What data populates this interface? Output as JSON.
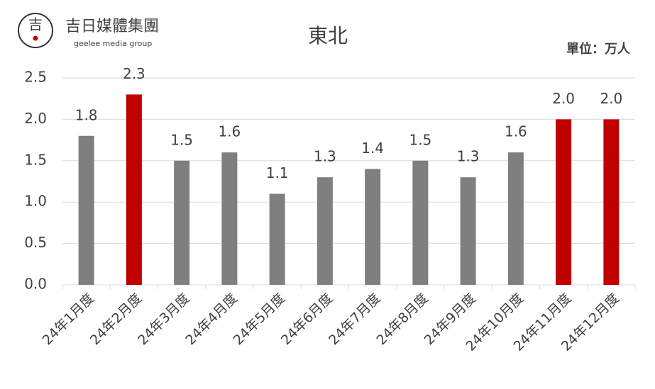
{
  "brand": {
    "mark": "吉",
    "name": "吉日媒體集團",
    "tagline": "geelee media group"
  },
  "chart_data": {
    "type": "bar",
    "title": "東北",
    "unit": "單位：万人",
    "categories": [
      "24年1月度",
      "24年2月度",
      "24年3月度",
      "24年4月度",
      "24年5月度",
      "24年6月度",
      "24年7月度",
      "24年8月度",
      "24年9月度",
      "24年10月度",
      "24年11月度",
      "24年12月度"
    ],
    "values": [
      1.8,
      2.3,
      1.5,
      1.6,
      1.1,
      1.3,
      1.4,
      1.5,
      1.3,
      1.6,
      2.0,
      2.0
    ],
    "value_labels": [
      "1.8",
      "2.3",
      "1.5",
      "1.6",
      "1.1",
      "1.3",
      "1.4",
      "1.5",
      "1.3",
      "1.6",
      "2.0",
      "2.0"
    ],
    "colors": [
      "#7f7f7f",
      "#c00000",
      "#7f7f7f",
      "#7f7f7f",
      "#7f7f7f",
      "#7f7f7f",
      "#7f7f7f",
      "#7f7f7f",
      "#7f7f7f",
      "#7f7f7f",
      "#c00000",
      "#c00000"
    ],
    "ylim": [
      0,
      2.5
    ],
    "yticks": [
      {
        "value": 0,
        "label": "0.0"
      },
      0.5,
      {
        "value": 1,
        "label": "1.0"
      },
      1.5,
      {
        "value": 2,
        "label": "2.0"
      },
      2.5
    ],
    "grid": true
  }
}
